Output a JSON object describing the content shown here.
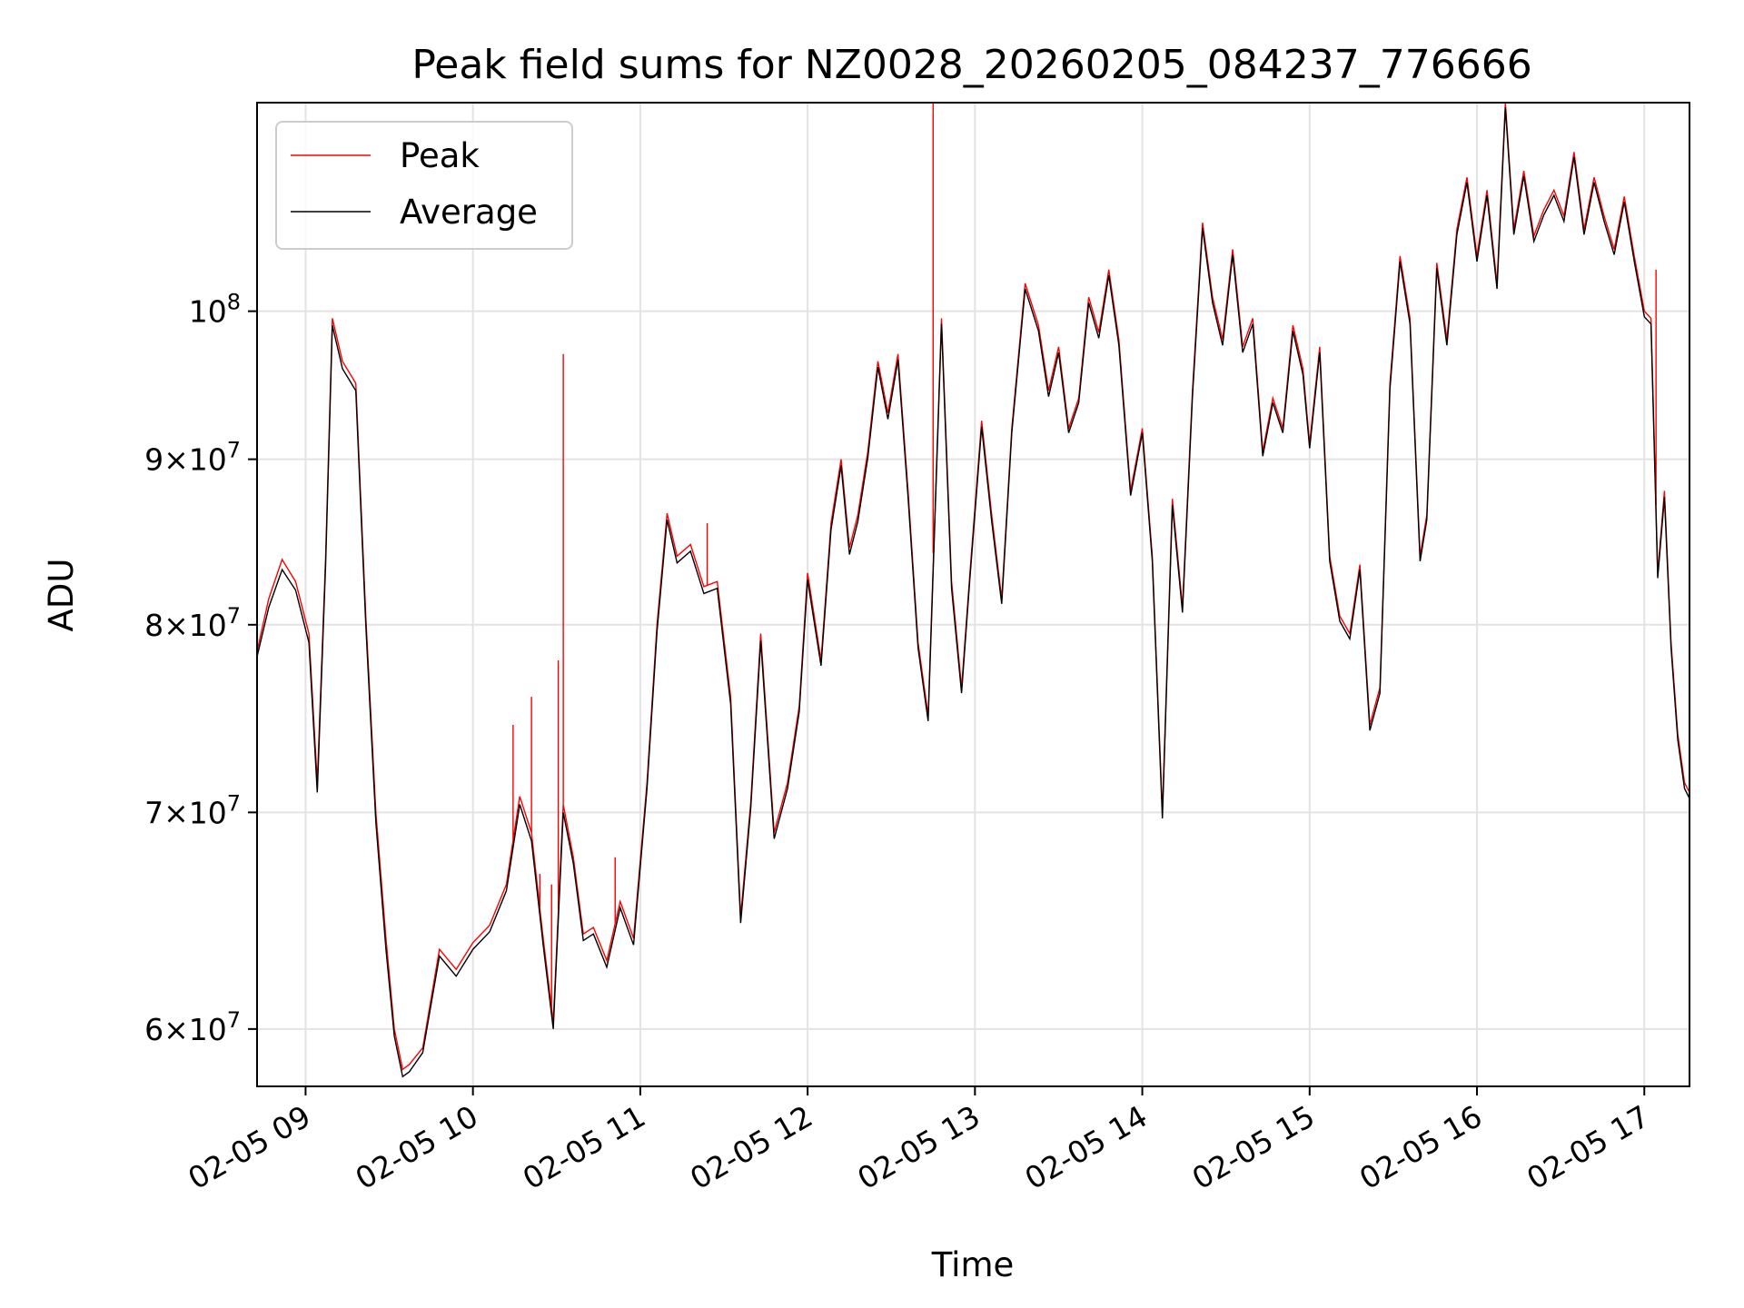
{
  "chart_data": {
    "type": "line",
    "title": "Peak field sums for NZ0028_20260205_084237_776666",
    "xlabel": "Time",
    "ylabel": "ADU",
    "yscale": "log",
    "grid": true,
    "legend_position": "top-left",
    "x_unit": "hours since 02-05 00:00",
    "xlim": [
      8.71,
      17.27
    ],
    "ylim": [
      57600000,
      116000000
    ],
    "x_ticks": [
      {
        "value": 9,
        "label": "02-05 09"
      },
      {
        "value": 10,
        "label": "02-05 10"
      },
      {
        "value": 11,
        "label": "02-05 11"
      },
      {
        "value": 12,
        "label": "02-05 12"
      },
      {
        "value": 13,
        "label": "02-05 13"
      },
      {
        "value": 14,
        "label": "02-05 14"
      },
      {
        "value": 15,
        "label": "02-05 15"
      },
      {
        "value": 16,
        "label": "02-05 16"
      },
      {
        "value": 17,
        "label": "02-05 17"
      }
    ],
    "y_ticks": [
      {
        "value": 60000000,
        "mantissa": "6",
        "exponent": "7"
      },
      {
        "value": 70000000,
        "mantissa": "7",
        "exponent": "7"
      },
      {
        "value": 80000000,
        "mantissa": "8",
        "exponent": "7"
      },
      {
        "value": 90000000,
        "mantissa": "9",
        "exponent": "7"
      },
      {
        "value": 100000000,
        "mantissa": "",
        "exponent": "8"
      }
    ],
    "x": [
      8.71,
      8.78,
      8.86,
      8.94,
      9.02,
      9.07,
      9.12,
      9.16,
      9.22,
      9.3,
      9.36,
      9.42,
      9.48,
      9.53,
      9.58,
      9.62,
      9.7,
      9.8,
      9.9,
      10.0,
      10.1,
      10.2,
      10.28,
      10.35,
      10.42,
      10.48,
      10.54,
      10.6,
      10.66,
      10.72,
      10.8,
      10.88,
      10.96,
      11.04,
      11.1,
      11.16,
      11.22,
      11.3,
      11.38,
      11.46,
      11.54,
      11.6,
      11.66,
      11.72,
      11.8,
      11.88,
      11.95,
      12.0,
      12.08,
      12.14,
      12.2,
      12.25,
      12.3,
      12.36,
      12.42,
      12.48,
      12.54,
      12.6,
      12.66,
      12.72,
      12.8,
      12.86,
      12.92,
      12.97,
      13.04,
      13.1,
      13.16,
      13.22,
      13.3,
      13.38,
      13.44,
      13.5,
      13.56,
      13.62,
      13.68,
      13.74,
      13.8,
      13.86,
      13.93,
      14.0,
      14.06,
      14.12,
      14.18,
      14.24,
      14.3,
      14.36,
      14.42,
      14.48,
      14.54,
      14.6,
      14.66,
      14.72,
      14.78,
      14.84,
      14.9,
      14.96,
      15.0,
      15.06,
      15.12,
      15.18,
      15.24,
      15.3,
      15.36,
      15.42,
      15.48,
      15.54,
      15.6,
      15.66,
      15.7,
      15.76,
      15.82,
      15.88,
      15.94,
      16.0,
      16.06,
      16.12,
      16.17,
      16.22,
      16.28,
      16.34,
      16.4,
      16.46,
      16.52,
      16.58,
      16.64,
      16.7,
      16.76,
      16.82,
      16.88,
      16.94,
      17.0,
      17.04,
      17.08,
      17.12,
      17.16,
      17.2,
      17.24,
      17.27
    ],
    "series": [
      {
        "name": "Peak",
        "color": "#ff0000",
        "values": [
          78500000,
          81500000,
          83800000,
          82500000,
          79500000,
          71500000,
          84000000,
          99500000,
          96500000,
          95000000,
          80500000,
          70000000,
          64000000,
          60000000,
          58300000,
          58500000,
          59200000,
          63500000,
          62600000,
          63800000,
          64600000,
          66500000,
          70800000,
          69000000,
          64000000,
          60300000,
          70400000,
          67800000,
          64200000,
          64500000,
          63000000,
          65700000,
          64000000,
          71500000,
          80000000,
          86600000,
          84000000,
          84700000,
          82200000,
          82500000,
          76000000,
          65000000,
          70500000,
          79500000,
          69000000,
          71500000,
          75500000,
          83000000,
          78000000,
          86000000,
          90000000,
          84500000,
          86500000,
          90500000,
          96500000,
          93000000,
          97000000,
          88000000,
          79000000,
          75000000,
          99500000,
          82500000,
          76500000,
          83000000,
          92500000,
          86500000,
          81500000,
          92000000,
          102000000,
          99000000,
          94500000,
          97500000,
          92000000,
          94000000,
          101000000,
          98500000,
          103000000,
          98000000,
          88000000,
          92000000,
          84000000,
          70000000,
          87500000,
          81000000,
          94500000,
          106500000,
          101000000,
          98000000,
          104500000,
          97500000,
          99500000,
          90500000,
          94000000,
          92000000,
          99000000,
          96000000,
          91000000,
          97500000,
          84000000,
          80500000,
          79500000,
          83500000,
          74500000,
          76500000,
          95000000,
          104000000,
          99500000,
          84000000,
          86500000,
          103500000,
          98000000,
          106000000,
          110000000,
          104000000,
          109000000,
          102000000,
          116000000,
          106000000,
          110500000,
          105500000,
          107500000,
          109000000,
          107000000,
          112000000,
          106000000,
          110000000,
          107000000,
          104500000,
          108500000,
          104000000,
          100000000,
          99500000,
          83000000,
          88000000,
          79000000,
          74000000,
          71500000,
          71000000
        ]
      },
      {
        "name": "Average",
        "color": "#000000",
        "values": [
          78200000,
          81000000,
          83200000,
          82000000,
          79000000,
          71000000,
          83500000,
          99000000,
          96000000,
          94500000,
          80000000,
          69500000,
          63500000,
          59700000,
          58000000,
          58200000,
          59000000,
          63200000,
          62300000,
          63500000,
          64300000,
          66200000,
          70400000,
          68600000,
          63700000,
          60000000,
          70000000,
          67500000,
          63900000,
          64200000,
          62700000,
          65400000,
          63700000,
          71200000,
          79600000,
          86200000,
          83600000,
          84300000,
          81800000,
          82100000,
          75600000,
          64700000,
          70200000,
          79100000,
          68700000,
          71200000,
          75200000,
          82600000,
          77700000,
          85600000,
          89600000,
          84100000,
          86100000,
          90100000,
          96100000,
          92600000,
          96600000,
          87600000,
          78700000,
          74700000,
          99100000,
          82100000,
          76200000,
          82700000,
          92100000,
          86100000,
          81200000,
          91700000,
          101600000,
          98600000,
          94100000,
          97100000,
          91700000,
          93700000,
          100600000,
          98100000,
          102600000,
          97600000,
          87700000,
          91700000,
          83700000,
          69700000,
          87100000,
          80700000,
          94100000,
          106100000,
          100600000,
          97600000,
          104100000,
          97100000,
          99100000,
          90200000,
          93700000,
          91700000,
          98600000,
          95600000,
          90700000,
          97100000,
          83700000,
          80200000,
          79200000,
          83200000,
          74200000,
          76200000,
          94600000,
          103600000,
          99100000,
          83700000,
          86200000,
          103100000,
          97600000,
          105600000,
          109600000,
          103600000,
          108600000,
          101600000,
          115600000,
          105600000,
          110100000,
          105100000,
          107100000,
          108600000,
          106600000,
          111600000,
          105600000,
          109600000,
          106600000,
          104100000,
          108100000,
          103600000,
          99600000,
          99100000,
          82700000,
          87600000,
          78700000,
          73700000,
          71200000,
          70700000
        ]
      }
    ],
    "peak_spikes": [
      {
        "x": 10.24,
        "value": 74500000
      },
      {
        "x": 10.35,
        "value": 76000000
      },
      {
        "x": 10.4,
        "value": 67000000
      },
      {
        "x": 10.47,
        "value": 66500000
      },
      {
        "x": 10.51,
        "value": 78000000
      },
      {
        "x": 10.54,
        "value": 97000000
      },
      {
        "x": 10.85,
        "value": 67800000
      },
      {
        "x": 11.4,
        "value": 86000000
      },
      {
        "x": 12.75,
        "value": 116000000
      },
      {
        "x": 17.07,
        "value": 103000000
      }
    ]
  }
}
